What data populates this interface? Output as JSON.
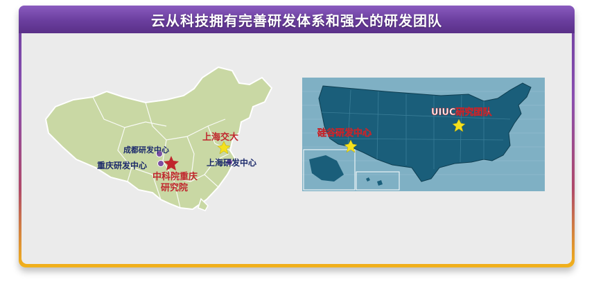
{
  "header": {
    "title": "云从科技拥有完善研发体系和强大的研发团队"
  },
  "china_map": {
    "labels": {
      "chengdu": "成都研发中心",
      "chongqing": "重庆研发中心",
      "cas_line1": "中科院重庆",
      "cas_line2": "研究院",
      "sjtu": "上海交大",
      "shanghai": "上海研发中心"
    }
  },
  "usa_map": {
    "labels": {
      "silicon_valley": "硅谷研发中心",
      "uiuc": "UIUC研究团队"
    }
  },
  "colors": {
    "title_bar": "#6a3e9e",
    "china_land": "#c9d8a4",
    "usa_land": "#1a5e7a",
    "usa_bg": "#7fb0c4",
    "label_red": "#c0262d",
    "label_navy": "#1c2a6b",
    "star_yellow": "#f5e11e",
    "star_red": "#c0262d"
  }
}
